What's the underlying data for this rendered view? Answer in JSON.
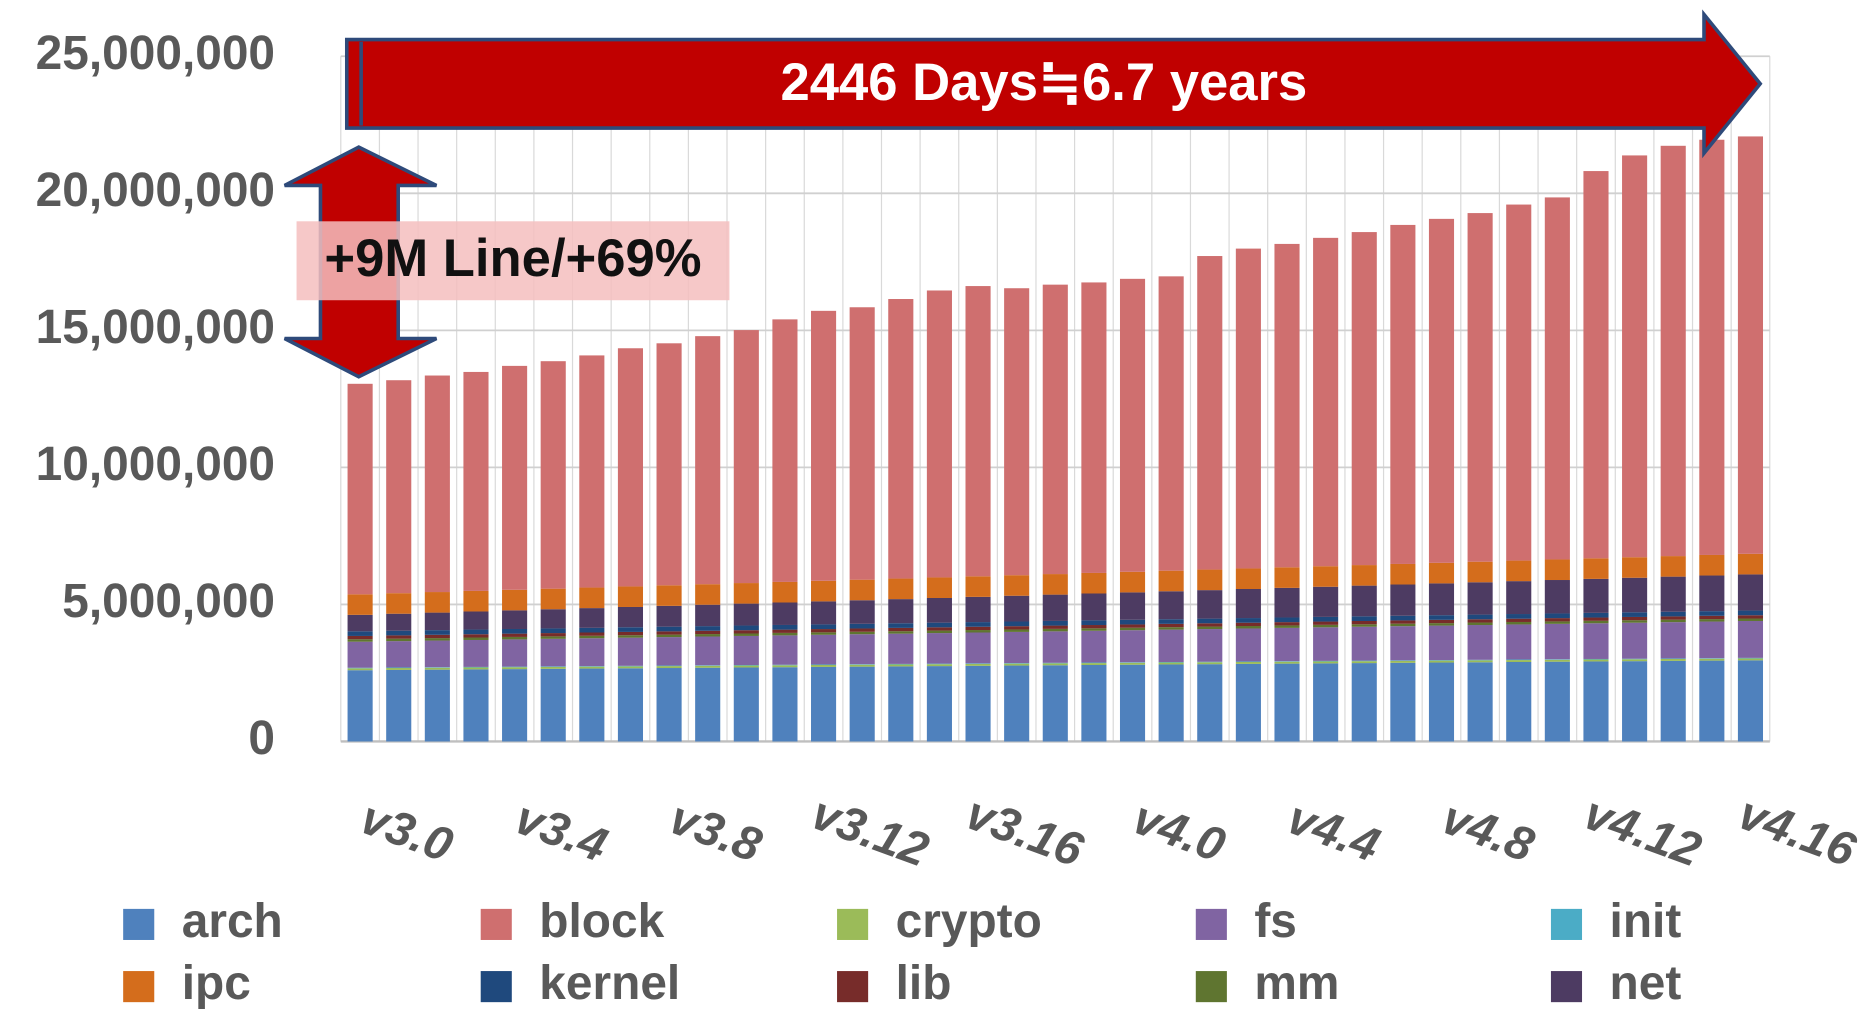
{
  "chart_data": {
    "type": "stacked-bar",
    "categories": [
      "v3.0",
      null,
      null,
      null,
      "v3.4",
      null,
      null,
      null,
      "v3.8",
      null,
      null,
      null,
      "v3.12",
      null,
      null,
      null,
      "v3.16",
      null,
      null,
      null,
      "v4.0",
      null,
      null,
      null,
      "v4.4",
      null,
      null,
      null,
      "v4.8",
      null,
      null,
      null,
      "v4.12",
      null,
      null,
      null,
      "v4.16"
    ],
    "series": [
      {
        "name": "arch",
        "color": "#4f81bd",
        "values": [
          2600000,
          2610000,
          2620000,
          2630000,
          2640000,
          2650000,
          2660000,
          2670000,
          2680000,
          2690000,
          2700000,
          2710000,
          2720000,
          2730000,
          2740000,
          2750000,
          2760000,
          2770000,
          2780000,
          2790000,
          2800000,
          2810000,
          2820000,
          2830000,
          2840000,
          2850000,
          2860000,
          2870000,
          2880000,
          2890000,
          2900000,
          2910000,
          2920000,
          2930000,
          2940000,
          2950000,
          2960000
        ]
      },
      {
        "name": "block",
        "color": "#cf6f6f",
        "values": [
          7680000,
          7770000,
          7900000,
          7990000,
          8170000,
          8300000,
          8470000,
          8690000,
          8830000,
          9050000,
          9230000,
          9580000,
          9850000,
          9940000,
          10200000,
          10470000,
          10590000,
          10470000,
          10560000,
          10600000,
          10690000,
          10740000,
          11440000,
          11670000,
          11800000,
          11980000,
          12150000,
          12370000,
          12550000,
          12720000,
          12990000,
          13210000,
          14130000,
          14660000,
          14970000,
          15150000,
          15230000
        ]
      },
      {
        "name": "crypto",
        "color": "#9bbb59",
        "values": [
          70000,
          70000,
          70000,
          70000,
          70000,
          70000,
          70000,
          70000,
          70000,
          70000,
          70000,
          70000,
          70000,
          70000,
          70000,
          70000,
          70000,
          70000,
          70000,
          70000,
          70000,
          70000,
          70000,
          70000,
          70000,
          70000,
          70000,
          70000,
          70000,
          70000,
          70000,
          70000,
          70000,
          70000,
          70000,
          70000,
          70000
        ]
      },
      {
        "name": "fs",
        "color": "#8064a2",
        "values": [
          950000,
          961000,
          972000,
          983000,
          994000,
          1005000,
          1016000,
          1027000,
          1038000,
          1049000,
          1060000,
          1071000,
          1082000,
          1093000,
          1104000,
          1115000,
          1126000,
          1137000,
          1148000,
          1159000,
          1170000,
          1181000,
          1192000,
          1203000,
          1214000,
          1225000,
          1236000,
          1247000,
          1258000,
          1269000,
          1280000,
          1291000,
          1302000,
          1313000,
          1324000,
          1335000,
          1346000
        ]
      },
      {
        "name": "init",
        "color": "#4bacc6",
        "values": [
          20000,
          20000,
          20000,
          20000,
          20000,
          20000,
          20000,
          20000,
          20000,
          20000,
          20000,
          20000,
          20000,
          20000,
          20000,
          20000,
          20000,
          20000,
          20000,
          20000,
          20000,
          20000,
          20000,
          20000,
          20000,
          20000,
          20000,
          20000,
          20000,
          20000,
          20000,
          20000,
          20000,
          20000,
          20000,
          20000,
          20000
        ]
      },
      {
        "name": "ipc",
        "color": "#d46d1c",
        "values": [
          750000,
          750000,
          750000,
          750000,
          750000,
          750000,
          750000,
          750000,
          750000,
          750000,
          750000,
          750000,
          750000,
          750000,
          750000,
          750000,
          750000,
          750000,
          750000,
          750000,
          750000,
          750000,
          750000,
          750000,
          750000,
          750000,
          750000,
          750000,
          750000,
          750000,
          750000,
          750000,
          750000,
          750000,
          750000,
          750000,
          750000
        ]
      },
      {
        "name": "kernel",
        "color": "#1f497d",
        "values": [
          170000,
          170000,
          170000,
          170000,
          170000,
          170000,
          170000,
          170000,
          170000,
          170000,
          170000,
          170000,
          170000,
          170000,
          170000,
          170000,
          170000,
          170000,
          170000,
          170000,
          170000,
          170000,
          170000,
          170000,
          170000,
          170000,
          170000,
          170000,
          170000,
          170000,
          170000,
          170000,
          170000,
          170000,
          170000,
          170000,
          170000
        ]
      },
      {
        "name": "lib",
        "color": "#772c2a",
        "values": [
          120000,
          120000,
          120000,
          120000,
          120000,
          120000,
          120000,
          120000,
          120000,
          120000,
          120000,
          120000,
          120000,
          120000,
          120000,
          120000,
          120000,
          120000,
          120000,
          120000,
          120000,
          120000,
          120000,
          120000,
          120000,
          120000,
          120000,
          120000,
          120000,
          120000,
          120000,
          120000,
          120000,
          120000,
          120000,
          120000,
          120000
        ]
      },
      {
        "name": "mm",
        "color": "#5f7530",
        "values": [
          90000,
          90000,
          90000,
          90000,
          90000,
          90000,
          90000,
          90000,
          90000,
          90000,
          90000,
          90000,
          90000,
          90000,
          90000,
          90000,
          90000,
          90000,
          90000,
          90000,
          90000,
          90000,
          90000,
          90000,
          90000,
          90000,
          90000,
          90000,
          90000,
          90000,
          90000,
          90000,
          90000,
          90000,
          90000,
          90000,
          90000
        ]
      },
      {
        "name": "net",
        "color": "#4d3b62",
        "values": [
          600000,
          620000,
          640000,
          660000,
          680000,
          700000,
          720000,
          740000,
          760000,
          780000,
          800000,
          820000,
          840000,
          860000,
          880000,
          900000,
          920000,
          940000,
          960000,
          980000,
          1000000,
          1020000,
          1040000,
          1060000,
          1080000,
          1100000,
          1120000,
          1140000,
          1160000,
          1180000,
          1200000,
          1220000,
          1240000,
          1260000,
          1280000,
          1300000,
          1320000
        ]
      }
    ],
    "ylim": [
      0,
      25000000
    ],
    "yticks": [
      0,
      {
        "value": 5000000,
        "label": "5,000,000"
      },
      {
        "value": 10000000,
        "label": "10,000,000"
      },
      {
        "value": 15000000,
        "label": "15,000,000"
      },
      {
        "value": 20000000,
        "label": "20,000,000"
      },
      {
        "value": 25000000,
        "label": "25,000,000"
      }
    ],
    "grid": true,
    "annotations": [
      "2446 Days≒6.7 years",
      "+9M Line/+69%"
    ]
  }
}
